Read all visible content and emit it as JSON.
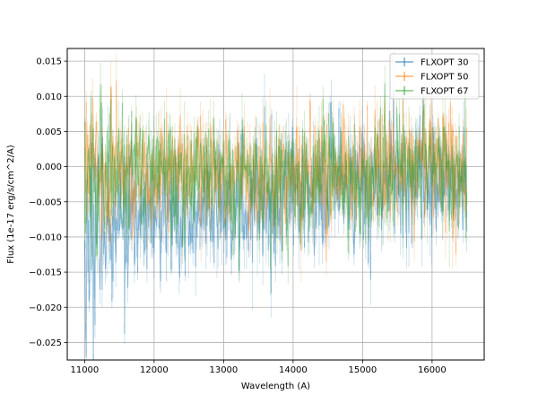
{
  "chart_data": {
    "type": "line",
    "title": "",
    "xlabel": "Wavelength (A)",
    "ylabel": "Flux (1e-17 erg/s/cm^2/A)",
    "xlim": [
      10750,
      16750
    ],
    "ylim": [
      -0.0275,
      0.0168
    ],
    "grid": true,
    "legend_position": "top-right",
    "x_ticks": [
      {
        "value": 11000,
        "label": "11000"
      },
      {
        "value": 12000,
        "label": "12000"
      },
      {
        "value": 13000,
        "label": "13000"
      },
      {
        "value": 14000,
        "label": "14000"
      },
      {
        "value": 15000,
        "label": "15000"
      },
      {
        "value": 16000,
        "label": "16000"
      }
    ],
    "y_ticks": [
      {
        "value": 0.015,
        "label": "0.015"
      },
      {
        "value": 0.01,
        "label": "0.010"
      },
      {
        "value": 0.005,
        "label": "0.005"
      },
      {
        "value": 0.0,
        "label": "0.000"
      },
      {
        "value": -0.005,
        "label": "−0.005"
      },
      {
        "value": -0.01,
        "label": "−0.010"
      },
      {
        "value": -0.015,
        "label": "−0.015"
      },
      {
        "value": -0.02,
        "label": "−0.020"
      },
      {
        "value": -0.025,
        "label": "−0.025"
      }
    ],
    "x_range": [
      11000,
      16500
    ],
    "series": [
      {
        "name": "FLXOPT 30",
        "color": "#1f77b4",
        "x": [
          11000,
          11250,
          11500,
          11750,
          12000,
          12250,
          12500,
          12750,
          13000,
          13250,
          13500,
          13750,
          14000,
          14250,
          14500,
          14750,
          15000,
          15250,
          15500,
          15750,
          16000,
          16250,
          16500
        ],
        "y": [
          -0.012,
          -0.009,
          -0.008,
          -0.008,
          -0.007,
          -0.007,
          -0.006,
          -0.006,
          -0.006,
          -0.005,
          -0.005,
          -0.005,
          -0.004,
          -0.004,
          -0.003,
          -0.003,
          -0.003,
          -0.003,
          -0.002,
          -0.002,
          -0.002,
          -0.002,
          -0.003
        ],
        "noise": 0.0045
      },
      {
        "name": "FLXOPT 50",
        "color": "#ff7f0e",
        "x": [
          11000,
          11250,
          11500,
          11750,
          12000,
          12250,
          12500,
          12750,
          13000,
          13250,
          13500,
          13750,
          14000,
          14250,
          14500,
          14750,
          15000,
          15250,
          15500,
          15750,
          16000,
          16250,
          16500
        ],
        "y": [
          0.001,
          0.0,
          0.0,
          -0.001,
          -0.001,
          -0.001,
          0.0,
          0.0,
          -0.001,
          -0.001,
          -0.002,
          -0.001,
          -0.001,
          -0.001,
          -0.001,
          0.0,
          -0.001,
          0.0,
          0.001,
          0.001,
          0.0,
          0.0,
          -0.001
        ],
        "noise": 0.004
      },
      {
        "name": "FLXOPT 67",
        "color": "#2ca02c",
        "x": [
          11000,
          11250,
          11500,
          11750,
          12000,
          12250,
          12500,
          12750,
          13000,
          13250,
          13500,
          13750,
          14000,
          14250,
          14500,
          14750,
          15000,
          15250,
          15500,
          15750,
          16000,
          16250,
          16500
        ],
        "y": [
          -0.002,
          -0.001,
          -0.001,
          0.0,
          0.0,
          -0.001,
          -0.001,
          0.0,
          -0.001,
          -0.001,
          -0.001,
          -0.002,
          -0.002,
          -0.002,
          -0.001,
          -0.002,
          -0.002,
          -0.001,
          0.0,
          0.001,
          0.001,
          0.0,
          -0.001
        ],
        "noise": 0.004
      }
    ]
  }
}
